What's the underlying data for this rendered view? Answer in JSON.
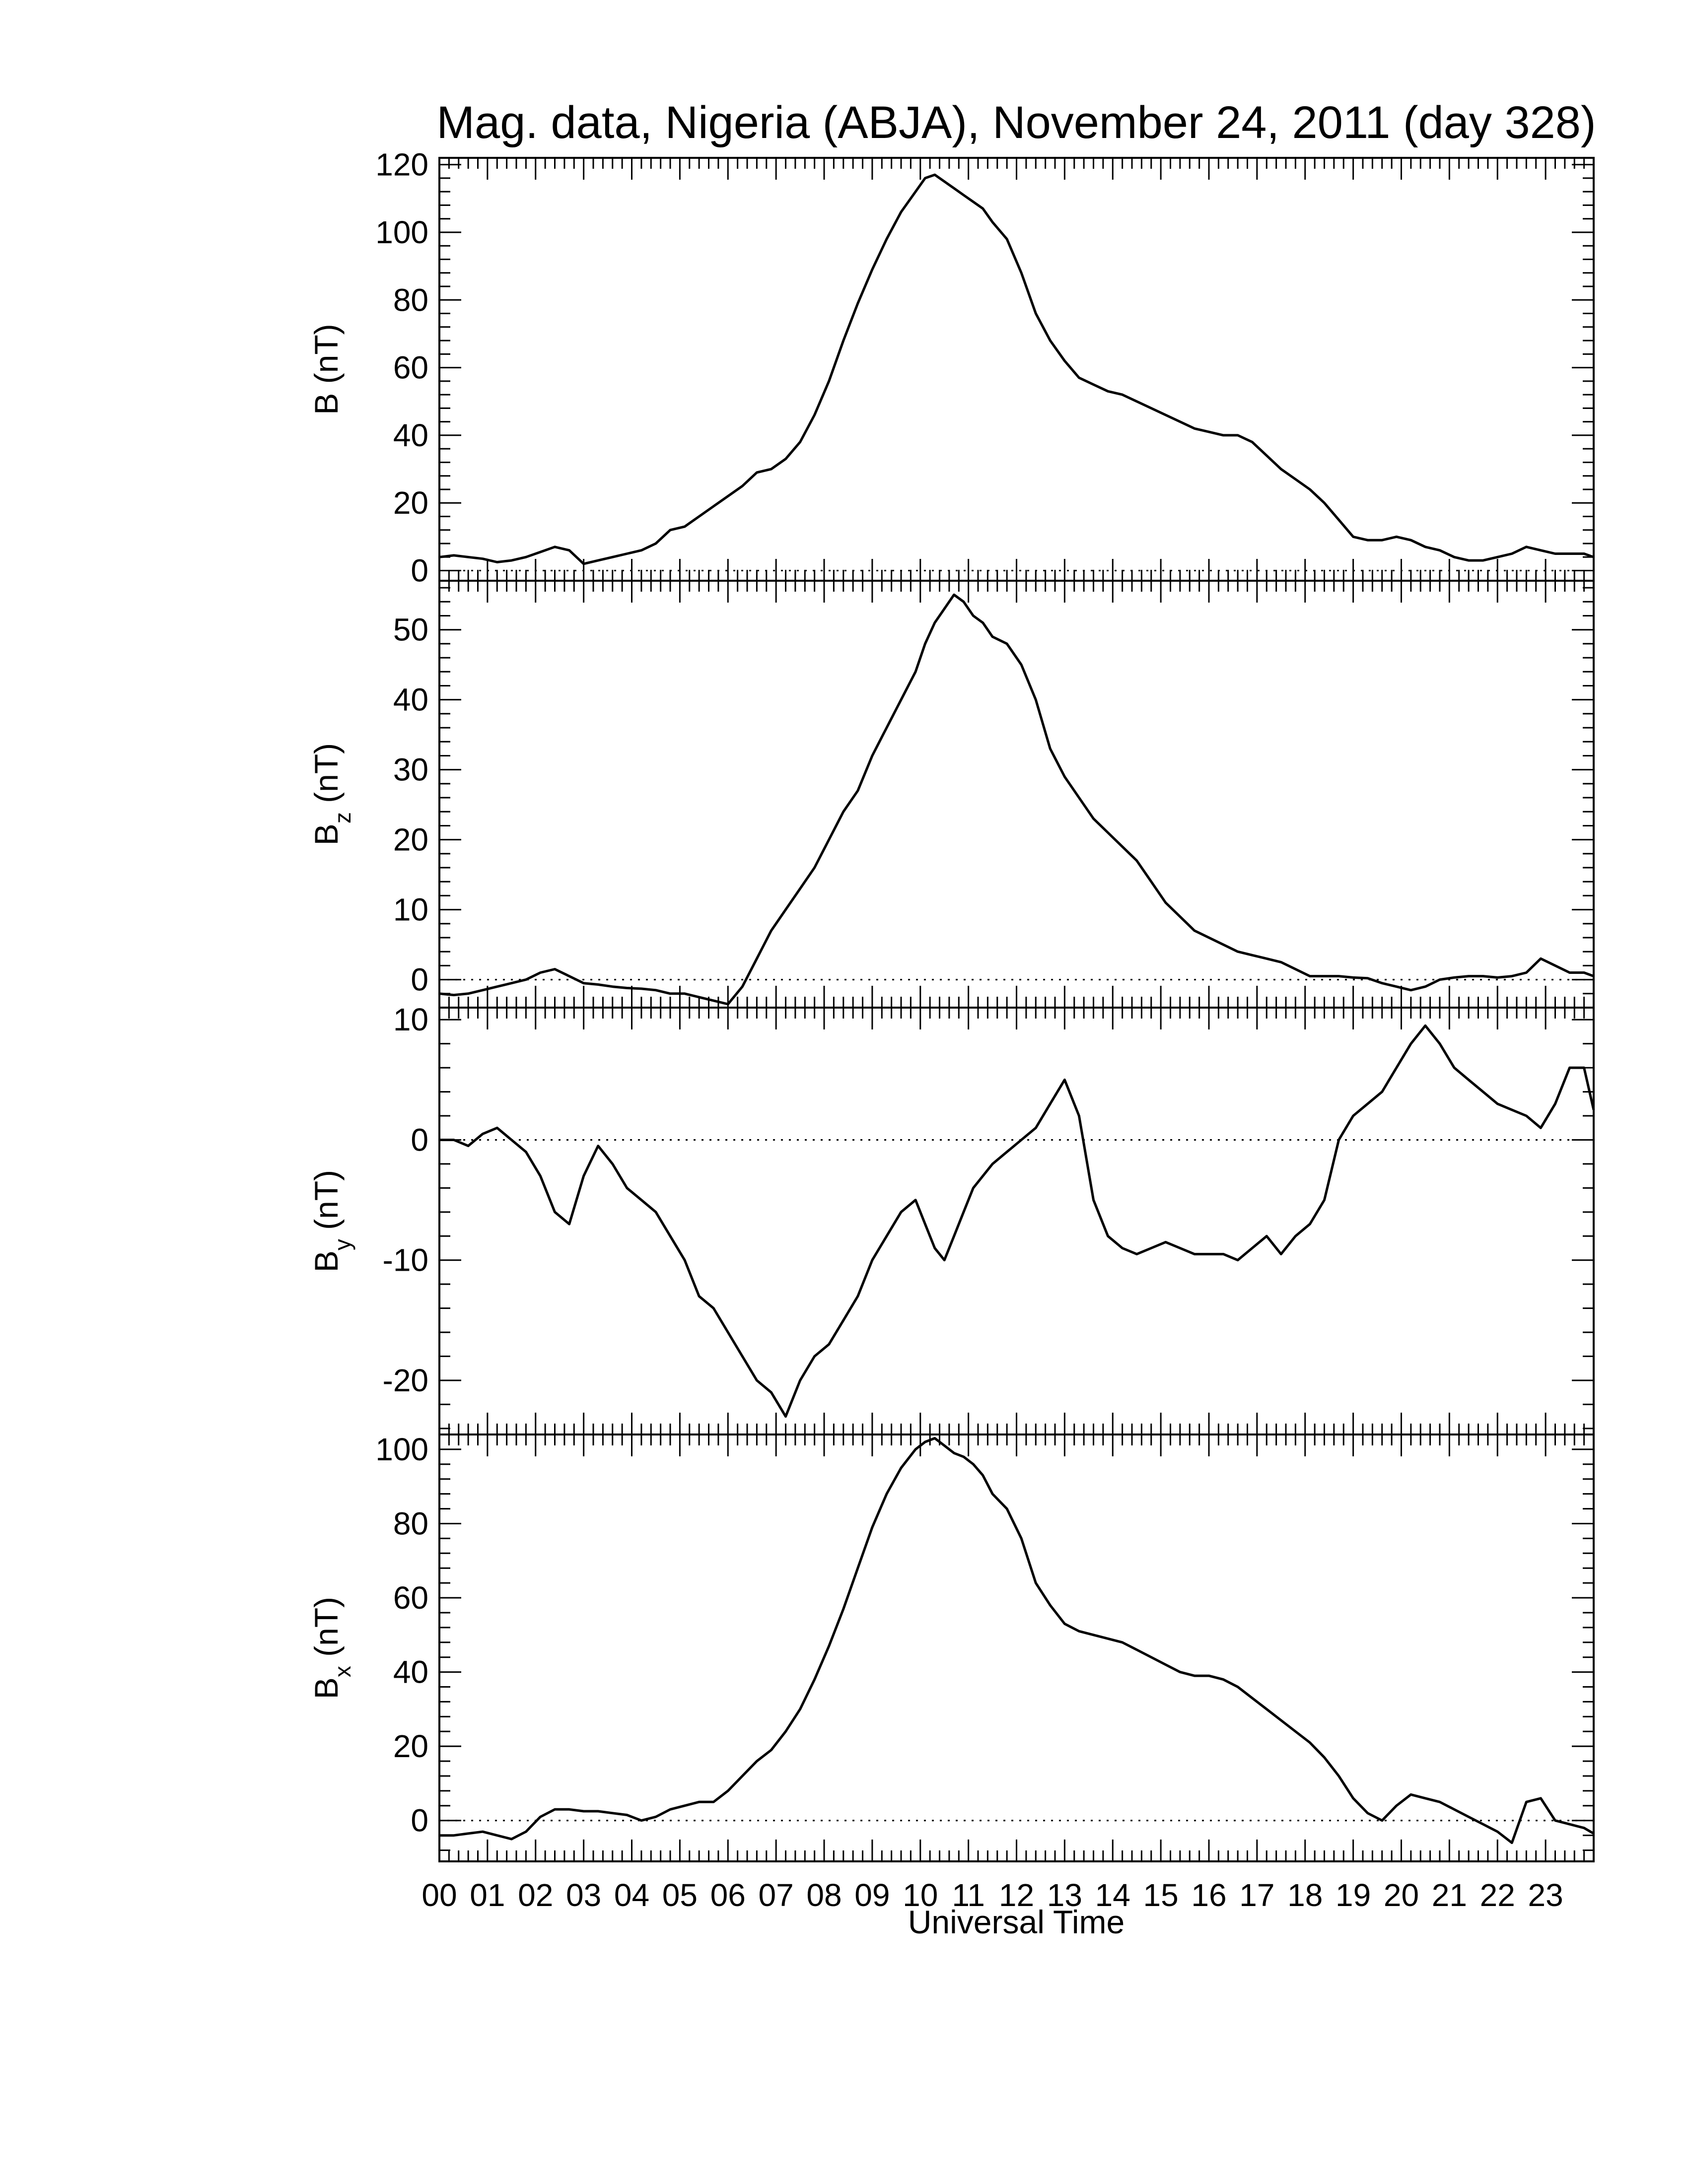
{
  "title": "Mag. data, Nigeria (ABJA), November 24, 2011 (day 328)",
  "xlabel": "Universal Time",
  "chart_data": [
    {
      "type": "line",
      "panel": "B",
      "ylabel_main": "B",
      "ylabel_sub": "",
      "ylabel_unit": "(nT)",
      "ylim": [
        -3,
        122
      ],
      "yticks": [
        0,
        20,
        40,
        60,
        80,
        100,
        120
      ],
      "zero_line": true,
      "x": [
        0,
        0.3,
        0.6,
        0.9,
        1.2,
        1.5,
        1.8,
        2.1,
        2.4,
        2.7,
        3.0,
        3.3,
        3.6,
        3.9,
        4.2,
        4.5,
        4.8,
        5.1,
        5.4,
        5.7,
        6.0,
        6.3,
        6.6,
        6.9,
        7.2,
        7.5,
        7.8,
        8.1,
        8.4,
        8.7,
        9.0,
        9.3,
        9.6,
        9.9,
        10.1,
        10.3,
        10.5,
        10.7,
        10.9,
        11.1,
        11.3,
        11.5,
        11.8,
        12.1,
        12.4,
        12.7,
        13.0,
        13.3,
        13.6,
        13.9,
        14.2,
        14.5,
        14.8,
        15.1,
        15.4,
        15.7,
        16.0,
        16.3,
        16.6,
        16.9,
        17.2,
        17.5,
        17.8,
        18.1,
        18.4,
        18.7,
        19.0,
        19.3,
        19.6,
        19.9,
        20.2,
        20.5,
        20.8,
        21.1,
        21.4,
        21.7,
        22.0,
        22.3,
        22.6,
        22.9,
        23.2,
        23.5,
        23.8,
        24.0
      ],
      "series": [
        {
          "values": [
            4,
            4.5,
            4,
            3.5,
            2.5,
            3,
            4,
            5.5,
            7,
            6,
            2,
            3,
            4,
            5,
            6,
            8,
            12,
            13,
            16,
            19,
            22,
            25,
            29,
            30,
            33,
            38,
            46,
            56,
            68,
            79,
            89,
            98,
            106,
            112,
            116,
            117,
            115,
            113,
            111,
            109,
            107,
            103,
            98,
            88,
            76,
            68,
            62,
            57,
            55,
            53,
            52,
            50,
            48,
            46,
            44,
            42,
            41,
            40,
            40,
            38,
            34,
            30,
            27,
            24,
            20,
            15,
            10,
            9,
            9,
            10,
            9,
            7,
            6,
            4,
            3,
            3,
            4,
            5,
            7,
            6,
            5,
            5,
            5,
            4
          ]
        }
      ]
    },
    {
      "type": "line",
      "panel": "Bz",
      "ylabel_main": "B",
      "ylabel_sub": "z",
      "ylabel_unit": "(nT)",
      "ylim": [
        -4,
        57
      ],
      "yticks": [
        0,
        10,
        20,
        30,
        40,
        50
      ],
      "zero_line": true,
      "x": [
        0,
        0.3,
        0.6,
        0.9,
        1.2,
        1.5,
        1.8,
        2.1,
        2.4,
        2.7,
        3.0,
        3.3,
        3.6,
        3.9,
        4.2,
        4.5,
        4.8,
        5.1,
        5.4,
        5.7,
        6.0,
        6.3,
        6.6,
        6.9,
        7.2,
        7.5,
        7.8,
        8.1,
        8.4,
        8.7,
        9.0,
        9.3,
        9.6,
        9.9,
        10.1,
        10.3,
        10.5,
        10.7,
        10.9,
        11.1,
        11.3,
        11.5,
        11.8,
        12.1,
        12.4,
        12.7,
        13.0,
        13.3,
        13.6,
        13.9,
        14.2,
        14.5,
        14.8,
        15.1,
        15.4,
        15.7,
        16.0,
        16.3,
        16.6,
        16.9,
        17.2,
        17.5,
        17.8,
        18.1,
        18.4,
        18.7,
        19.0,
        19.3,
        19.6,
        19.9,
        20.2,
        20.5,
        20.8,
        21.1,
        21.4,
        21.7,
        22.0,
        22.3,
        22.6,
        22.9,
        23.2,
        23.5,
        23.8,
        24.0
      ],
      "series": [
        {
          "values": [
            -2,
            -2.2,
            -2,
            -1.5,
            -1,
            -0.5,
            0,
            1,
            1.5,
            0.5,
            -0.5,
            -0.7,
            -1,
            -1.2,
            -1.3,
            -1.5,
            -2,
            -2,
            -2.5,
            -3,
            -3.5,
            -1,
            3,
            7,
            10,
            13,
            16,
            20,
            24,
            27,
            32,
            36,
            40,
            44,
            48,
            51,
            53,
            55,
            54,
            52,
            51,
            49,
            48,
            45,
            40,
            33,
            29,
            26,
            23,
            21,
            19,
            17,
            14,
            11,
            9,
            7,
            6,
            5,
            4,
            3.5,
            3,
            2.5,
            1.5,
            0.5,
            0.5,
            0.5,
            0.3,
            0.2,
            -0.5,
            -1,
            -1.5,
            -1,
            0,
            0.3,
            0.5,
            0.5,
            0.3,
            0.5,
            1,
            3,
            2,
            1,
            1,
            0.5
          ]
        }
      ]
    },
    {
      "type": "line",
      "panel": "By",
      "ylabel_main": "B",
      "ylabel_sub": "y",
      "ylabel_unit": "(nT)",
      "ylim": [
        -24.5,
        11
      ],
      "yticks": [
        -20,
        -10,
        0,
        10
      ],
      "zero_line": true,
      "x": [
        0,
        0.3,
        0.6,
        0.9,
        1.2,
        1.5,
        1.8,
        2.1,
        2.4,
        2.7,
        3.0,
        3.3,
        3.6,
        3.9,
        4.2,
        4.5,
        4.8,
        5.1,
        5.4,
        5.7,
        6.0,
        6.3,
        6.6,
        6.9,
        7.2,
        7.5,
        7.8,
        8.1,
        8.4,
        8.7,
        9.0,
        9.3,
        9.6,
        9.9,
        10.1,
        10.3,
        10.5,
        10.7,
        10.9,
        11.1,
        11.3,
        11.5,
        11.8,
        12.1,
        12.4,
        12.7,
        13.0,
        13.3,
        13.6,
        13.9,
        14.2,
        14.5,
        14.8,
        15.1,
        15.4,
        15.7,
        16.0,
        16.3,
        16.6,
        16.9,
        17.2,
        17.5,
        17.8,
        18.1,
        18.4,
        18.7,
        19.0,
        19.3,
        19.6,
        19.9,
        20.2,
        20.5,
        20.8,
        21.1,
        21.4,
        21.7,
        22.0,
        22.3,
        22.6,
        22.9,
        23.2,
        23.5,
        23.8,
        24.0
      ],
      "series": [
        {
          "values": [
            0,
            0,
            -0.5,
            0.5,
            1,
            0,
            -1,
            -3,
            -6,
            -7,
            -3,
            -0.5,
            -2,
            -4,
            -5,
            -6,
            -8,
            -10,
            -13,
            -14,
            -16,
            -18,
            -20,
            -21,
            -23,
            -20,
            -18,
            -17,
            -15,
            -13,
            -10,
            -8,
            -6,
            -5,
            -7,
            -9,
            -10,
            -8,
            -6,
            -4,
            -3,
            -2,
            -1,
            0,
            1,
            3,
            5,
            2,
            -5,
            -8,
            -9,
            -9.5,
            -9,
            -8.5,
            -9,
            -9.5,
            -9.5,
            -9.5,
            -10,
            -9,
            -8,
            -9.5,
            -8,
            -7,
            -5,
            0,
            2,
            3,
            4,
            6,
            8,
            9.5,
            8,
            6,
            5,
            4,
            3,
            2.5,
            2,
            1,
            3,
            6,
            6,
            2.5
          ]
        }
      ]
    },
    {
      "type": "line",
      "panel": "Bx",
      "ylabel_main": "B",
      "ylabel_sub": "x",
      "ylabel_unit": "(nT)",
      "ylim": [
        -11,
        104
      ],
      "yticks": [
        0,
        20,
        40,
        60,
        80,
        100
      ],
      "zero_line": true,
      "x": [
        0,
        0.3,
        0.6,
        0.9,
        1.2,
        1.5,
        1.8,
        2.1,
        2.4,
        2.7,
        3.0,
        3.3,
        3.6,
        3.9,
        4.2,
        4.5,
        4.8,
        5.1,
        5.4,
        5.7,
        6.0,
        6.3,
        6.6,
        6.9,
        7.2,
        7.5,
        7.8,
        8.1,
        8.4,
        8.7,
        9.0,
        9.3,
        9.6,
        9.9,
        10.1,
        10.3,
        10.5,
        10.7,
        10.9,
        11.1,
        11.3,
        11.5,
        11.8,
        12.1,
        12.4,
        12.7,
        13.0,
        13.3,
        13.6,
        13.9,
        14.2,
        14.5,
        14.8,
        15.1,
        15.4,
        15.7,
        16.0,
        16.3,
        16.6,
        16.9,
        17.2,
        17.5,
        17.8,
        18.1,
        18.4,
        18.7,
        19.0,
        19.3,
        19.6,
        19.9,
        20.2,
        20.5,
        20.8,
        21.1,
        21.4,
        21.7,
        22.0,
        22.3,
        22.6,
        22.9,
        23.2,
        23.5,
        23.8,
        24.0
      ],
      "series": [
        {
          "values": [
            -4,
            -4,
            -3.5,
            -3,
            -4,
            -5,
            -3,
            1,
            3,
            3,
            2.5,
            2.5,
            2,
            1.5,
            0,
            1,
            3,
            4,
            5,
            5,
            8,
            12,
            16,
            19,
            24,
            30,
            38,
            47,
            57,
            68,
            79,
            88,
            95,
            100,
            102,
            103,
            101,
            99,
            98,
            96,
            93,
            88,
            84,
            76,
            64,
            58,
            53,
            51,
            50,
            49,
            48,
            46,
            44,
            42,
            40,
            39,
            39,
            38,
            36,
            33,
            30,
            27,
            24,
            21,
            17,
            12,
            6,
            2,
            0,
            4,
            7,
            6,
            5,
            3,
            1,
            -1,
            -3,
            -6,
            5,
            6,
            0,
            -1,
            -2,
            -3.5
          ]
        }
      ]
    }
  ],
  "xticks": [
    "00",
    "01",
    "02",
    "03",
    "04",
    "05",
    "06",
    "07",
    "08",
    "09",
    "10",
    "11",
    "12",
    "13",
    "14",
    "15",
    "16",
    "17",
    "18",
    "19",
    "20",
    "21",
    "22",
    "23"
  ],
  "xlim": [
    0,
    24
  ]
}
